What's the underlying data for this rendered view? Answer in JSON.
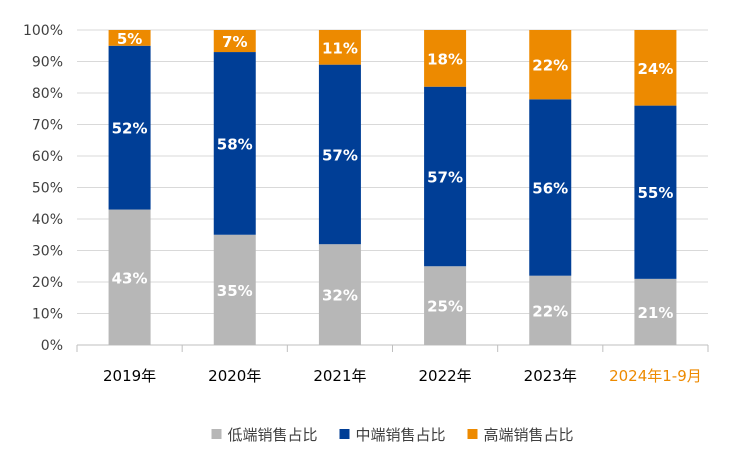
{
  "chart_data": {
    "type": "bar",
    "stacked": true,
    "percent_stacked": true,
    "categories": [
      "2019年",
      "2020年",
      "2021年",
      "2022年",
      "2023年",
      "2024年1-9月"
    ],
    "highlight_category_index": 5,
    "highlight_category_color": "#ED8A00",
    "series": [
      {
        "name": "低端销售占比",
        "values": [
          43,
          35,
          32,
          25,
          22,
          21
        ],
        "labels": [
          "43%",
          "35%",
          "32%",
          "25%",
          "22%",
          "21%"
        ],
        "color": "#B7B7B7"
      },
      {
        "name": "中端销售占比",
        "values": [
          52,
          58,
          57,
          57,
          56,
          55
        ],
        "labels": [
          "52%",
          "58%",
          "57%",
          "57%",
          "56%",
          "55%"
        ],
        "color": "#003E96"
      },
      {
        "name": "高端销售占比",
        "values": [
          5,
          7,
          11,
          18,
          22,
          24
        ],
        "labels": [
          "5%",
          "7%",
          "11%",
          "18%",
          "22%",
          "24%"
        ],
        "color": "#ED8A00"
      }
    ],
    "y_tick_labels": [
      "0%",
      "10%",
      "20%",
      "30%",
      "40%",
      "50%",
      "60%",
      "70%",
      "80%",
      "90%",
      "100%"
    ],
    "ylim": [
      0,
      100
    ],
    "grid": true,
    "legend_position": "bottom",
    "title": "",
    "xlabel": "",
    "ylabel": ""
  }
}
